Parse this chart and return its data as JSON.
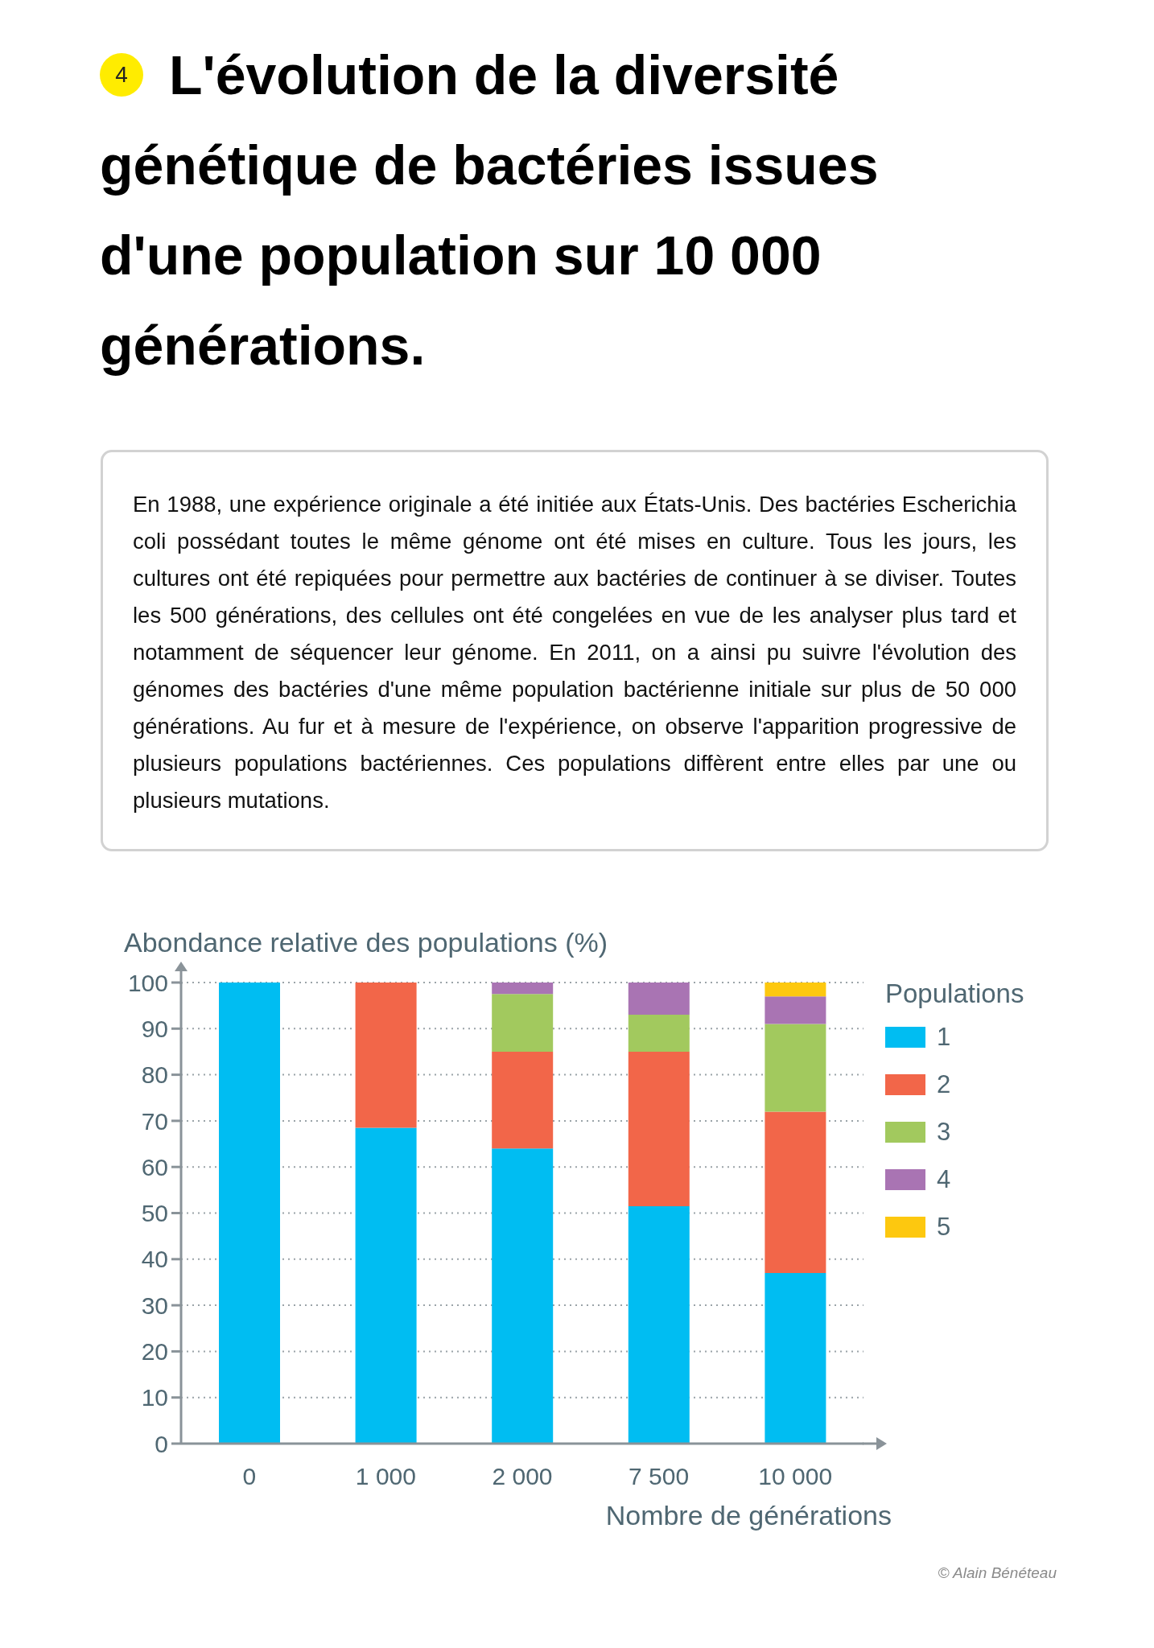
{
  "chart_data": {
    "type": "bar",
    "title": "L'évolution de la diversité génétique de bactéries issues d'une population sur 10 000 générations.",
    "annotations": [
      "4",
      "En 1988, une expérience originale a été initiée aux États-Unis. Des bactéries Escherichia coli possédant toutes le même génome ont été mises en culture. Tous les jours, les cultures ont été repiquées pour permettre aux bactéries de continuer à se diviser. Toutes les 500 générations, des cellules ont été congelées en vue de les analyser plus tard et notamment de séquencer leur génome. En 2011, on a ainsi pu suivre l'évolution des génomes des bactéries d'une même population bactérienne initiale sur plus de 50 000 générations. Au fur et à mesure de l'expérience, on observe l'apparition progressive de plusieurs populations bactériennes. Ces populations diffèrent entre elles par une ou plusieurs mutations.",
      "© Alain Bénéteau"
    ],
    "ylabel": "Abondance relative des populations (%)",
    "xlabel": "Nombre de générations",
    "legend_title": "Populations",
    "categories": [
      "0",
      "1 000",
      "2 000",
      "7 500",
      "10 000"
    ],
    "series": [
      {
        "name": "1",
        "color": "#00bdf2",
        "values": [
          100,
          68.5,
          64,
          51.5,
          37
        ]
      },
      {
        "name": "2",
        "color": "#f26649",
        "values": [
          null,
          31.5,
          21,
          33.5,
          35
        ]
      },
      {
        "name": "3",
        "color": "#a2c95e",
        "values": [
          null,
          null,
          12.5,
          8,
          19
        ]
      },
      {
        "name": "4",
        "color": "#a974b3",
        "values": [
          null,
          null,
          2.5,
          7,
          6
        ]
      },
      {
        "name": "5",
        "color": "#fdc80f",
        "values": [
          null,
          null,
          null,
          null,
          3
        ]
      }
    ],
    "stacked": true,
    "ylim": [
      0,
      100
    ],
    "yticks": [
      0,
      10,
      20,
      30,
      40,
      50,
      60,
      70,
      80,
      90,
      100
    ],
    "grid": "y",
    "legend": "top right"
  }
}
